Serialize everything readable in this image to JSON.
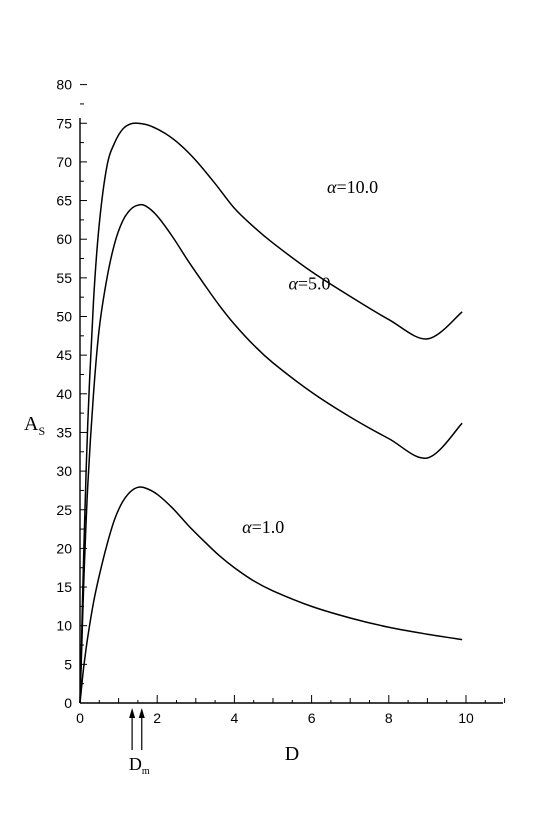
{
  "chart_data": {
    "type": "line",
    "title": "",
    "xlabel": "D",
    "ylabel": "A",
    "ylabel_sub": "S",
    "xlim": [
      0,
      11
    ],
    "ylim": [
      0,
      82
    ],
    "x_ticks": [
      0,
      2,
      4,
      6,
      8,
      10
    ],
    "y_ticks": [
      0,
      5,
      10,
      15,
      20,
      25,
      30,
      35,
      40,
      45,
      50,
      55,
      60,
      65,
      70,
      75,
      80
    ],
    "grid": false,
    "legend": "none",
    "series": [
      {
        "label": "α=10.0",
        "label_at": [
          6.4,
          66
        ],
        "x": [
          0,
          0.05,
          0.1,
          0.2,
          0.35,
          0.5,
          0.7,
          0.9,
          1.1,
          1.3,
          1.5,
          1.8,
          2.2,
          2.6,
          3.0,
          3.5,
          4.0,
          4.5,
          5.0,
          6.0,
          7.0,
          8.0,
          9.0,
          9.9
        ],
        "y": [
          0,
          10,
          20,
          36,
          52,
          62,
          69.5,
          72.5,
          74.2,
          74.9,
          75.0,
          74.7,
          73.7,
          72.2,
          70.2,
          67.2,
          64.0,
          61.6,
          59.5,
          55.8,
          52.6,
          49.6,
          47.1,
          50.6
        ]
      },
      {
        "label": "α=5.0",
        "label_at": [
          5.4,
          53.5
        ],
        "x": [
          0,
          0.05,
          0.1,
          0.2,
          0.35,
          0.5,
          0.7,
          0.9,
          1.1,
          1.3,
          1.5,
          1.7,
          2.0,
          2.4,
          2.8,
          3.2,
          3.6,
          4.0,
          4.5,
          5.0,
          6.0,
          7.0,
          8.0,
          9.0,
          9.9
        ],
        "y": [
          0,
          8,
          16,
          28,
          40,
          48.5,
          55,
          59.5,
          62.3,
          63.8,
          64.4,
          64.3,
          63.0,
          60.3,
          57.2,
          54.3,
          51.5,
          49.0,
          46.3,
          44.0,
          40.2,
          37.0,
          34.2,
          31.7,
          36.2
        ]
      },
      {
        "label": "α=1.0",
        "label_at": [
          4.2,
          22
        ],
        "x": [
          0,
          0.05,
          0.1,
          0.2,
          0.35,
          0.5,
          0.7,
          0.9,
          1.1,
          1.3,
          1.5,
          1.7,
          2.0,
          2.4,
          2.8,
          3.2,
          3.6,
          4.0,
          4.5,
          5.0,
          6.0,
          7.0,
          8.0,
          9.0,
          9.9
        ],
        "y": [
          0,
          2.5,
          4.8,
          8.5,
          13,
          16.5,
          20.5,
          23.8,
          26.0,
          27.3,
          27.9,
          27.8,
          27.0,
          25.2,
          23.0,
          21.0,
          19.1,
          17.5,
          15.8,
          14.5,
          12.5,
          11.0,
          9.8,
          8.9,
          8.2
        ]
      }
    ],
    "annotations": [
      {
        "text": "D",
        "sub": "m",
        "arrows_at_x": [
          1.35,
          1.6
        ]
      }
    ]
  }
}
